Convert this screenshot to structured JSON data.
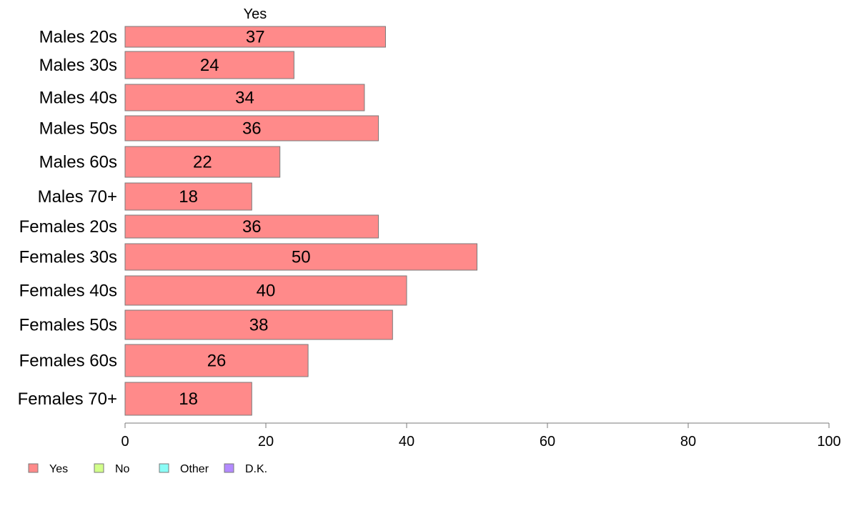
{
  "chart_data": {
    "type": "bar",
    "orientation": "horizontal",
    "stacked": true,
    "column_header": "Yes",
    "categories": [
      "Males 20s",
      "Males 30s",
      "Males 40s",
      "Males 50s",
      "Males 60s",
      "Males 70+",
      "Females 20s",
      "Females 30s",
      "Females 40s",
      "Females 50s",
      "Females 60s",
      "Females 70+"
    ],
    "series": [
      {
        "name": "Yes",
        "color": "#ff8a8a",
        "values": [
          37,
          24,
          34,
          36,
          22,
          18,
          36,
          50,
          40,
          38,
          26,
          18
        ]
      }
    ],
    "xlim": [
      0,
      100
    ],
    "xticks": [
      0,
      20,
      40,
      60,
      80,
      100
    ],
    "grid": false,
    "legend_position": "bottom-left",
    "legend": [
      {
        "name": "Yes",
        "color": "#ff8a8a"
      },
      {
        "name": "No",
        "color": "#d2ff8a"
      },
      {
        "name": "Other",
        "color": "#8afcf6"
      },
      {
        "name": "D.K.",
        "color": "#b38aff"
      }
    ]
  }
}
